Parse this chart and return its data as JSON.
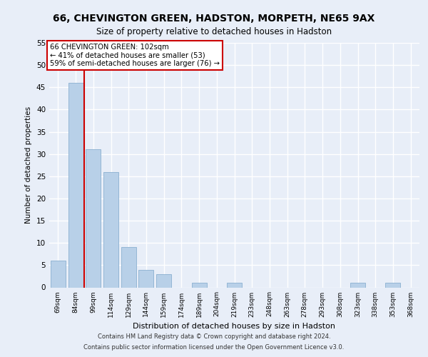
{
  "title1": "66, CHEVINGTON GREEN, HADSTON, MORPETH, NE65 9AX",
  "title2": "Size of property relative to detached houses in Hadston",
  "xlabel": "Distribution of detached houses by size in Hadston",
  "ylabel": "Number of detached properties",
  "categories": [
    "69sqm",
    "84sqm",
    "99sqm",
    "114sqm",
    "129sqm",
    "144sqm",
    "159sqm",
    "174sqm",
    "189sqm",
    "204sqm",
    "219sqm",
    "233sqm",
    "248sqm",
    "263sqm",
    "278sqm",
    "293sqm",
    "308sqm",
    "323sqm",
    "338sqm",
    "353sqm",
    "368sqm"
  ],
  "values": [
    6,
    46,
    31,
    26,
    9,
    4,
    3,
    0,
    1,
    0,
    1,
    0,
    0,
    0,
    0,
    0,
    0,
    1,
    0,
    1,
    0
  ],
  "bar_color": "#b8d0e8",
  "bar_edge_color": "#8ab0d0",
  "vline_color": "#cc0000",
  "vline_position": 1.5,
  "annotation_text": "66 CHEVINGTON GREEN: 102sqm\n← 41% of detached houses are smaller (53)\n59% of semi-detached houses are larger (76) →",
  "ylim": [
    0,
    55
  ],
  "yticks": [
    0,
    5,
    10,
    15,
    20,
    25,
    30,
    35,
    40,
    45,
    50,
    55
  ],
  "background_color": "#e8eef8",
  "grid_color": "#ffffff",
  "footer1": "Contains HM Land Registry data © Crown copyright and database right 2024.",
  "footer2": "Contains public sector information licensed under the Open Government Licence v3.0."
}
